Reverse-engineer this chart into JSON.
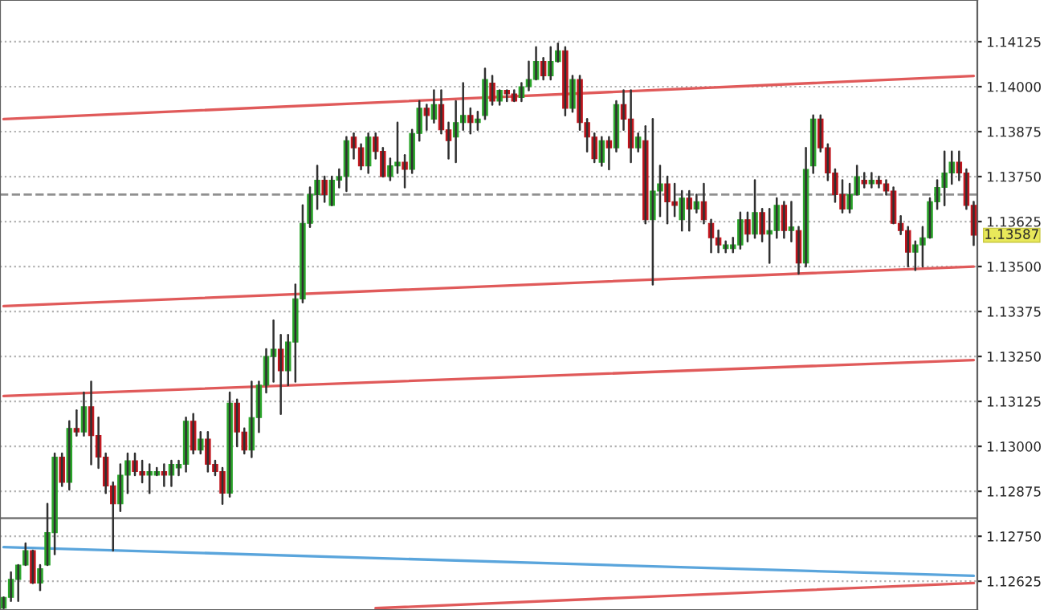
{
  "chart_data": {
    "type": "candlestick",
    "categories": [
      null,
      null,
      null,
      null,
      null,
      null,
      null,
      null,
      null,
      null,
      null,
      null,
      null,
      null,
      null,
      null,
      null,
      null,
      null,
      null,
      null,
      null,
      null,
      null,
      null,
      null,
      null,
      null,
      null,
      null,
      null,
      null,
      null,
      null,
      null,
      null,
      null,
      null,
      null,
      null,
      null,
      null,
      null,
      null,
      null,
      null,
      null,
      null,
      null,
      null,
      null,
      null,
      null,
      null,
      null,
      null,
      null,
      null,
      null,
      null,
      null,
      null,
      null,
      null,
      null,
      null,
      null,
      null,
      null,
      null,
      null,
      null,
      null,
      null,
      null,
      null,
      null,
      null,
      null,
      null,
      null,
      null,
      null,
      null,
      null,
      null,
      null,
      null,
      null,
      null,
      null,
      null,
      null,
      null,
      null,
      null,
      null,
      null,
      null,
      null,
      null,
      null,
      null,
      null,
      null,
      null,
      null,
      null,
      null,
      null,
      null,
      null,
      null,
      null,
      null,
      null,
      null,
      null,
      null,
      null,
      null,
      null,
      null,
      null,
      null,
      null,
      null,
      null,
      null,
      null,
      null,
      null,
      null,
      null
    ],
    "ohlc": [
      [
        1.1255,
        1.1258,
        1.1255,
        1.1258
      ],
      [
        1.1258,
        1.1265,
        1.1257,
        1.1263
      ],
      [
        1.1263,
        1.1267,
        1.1257,
        1.1267
      ],
      [
        1.1267,
        1.1273,
        1.1267,
        1.1271
      ],
      [
        1.1271,
        1.1271,
        1.1262,
        1.1262
      ],
      [
        1.1262,
        1.1267,
        1.126,
        1.1266
      ],
      [
        1.1267,
        1.1284,
        1.1267,
        1.1276
      ],
      [
        1.1276,
        1.1298,
        1.127,
        1.1297
      ],
      [
        1.1297,
        1.1298,
        1.1289,
        1.129
      ],
      [
        1.129,
        1.1307,
        1.1288,
        1.1305
      ],
      [
        1.1305,
        1.131,
        1.1303,
        1.1304
      ],
      [
        1.1304,
        1.1315,
        1.1303,
        1.1311
      ],
      [
        1.1311,
        1.1318,
        1.1295,
        1.1303
      ],
      [
        1.1303,
        1.1308,
        1.1294,
        1.1297
      ],
      [
        1.1297,
        1.1298,
        1.1287,
        1.1289
      ],
      [
        1.1289,
        1.129,
        1.1271,
        1.1284
      ],
      [
        1.1284,
        1.1295,
        1.1282,
        1.1292
      ],
      [
        1.1292,
        1.1298,
        1.1287,
        1.1296
      ],
      [
        1.1296,
        1.1298,
        1.1292,
        1.1293
      ],
      [
        1.1293,
        1.1296,
        1.129,
        1.1292
      ],
      [
        1.1292,
        1.1295,
        1.1287,
        1.1293
      ],
      [
        1.1292,
        1.1294,
        1.1292,
        1.1293
      ],
      [
        1.1293,
        1.1295,
        1.1289,
        1.1292
      ],
      [
        1.1292,
        1.1296,
        1.1289,
        1.1295
      ],
      [
        1.1294,
        1.1296,
        1.1292,
        1.1295
      ],
      [
        1.1295,
        1.1308,
        1.1293,
        1.1307
      ],
      [
        1.1307,
        1.1309,
        1.1298,
        1.1299
      ],
      [
        1.1299,
        1.1304,
        1.1298,
        1.1302
      ],
      [
        1.1302,
        1.1304,
        1.1293,
        1.1295
      ],
      [
        1.1295,
        1.1296,
        1.1292,
        1.1293
      ],
      [
        1.1293,
        1.1294,
        1.1284,
        1.1287
      ],
      [
        1.1287,
        1.1315,
        1.1286,
        1.1312
      ],
      [
        1.1312,
        1.1313,
        1.13,
        1.1304
      ],
      [
        1.1304,
        1.1305,
        1.1298,
        1.1299
      ],
      [
        1.1299,
        1.1318,
        1.1297,
        1.1308
      ],
      [
        1.1308,
        1.1318,
        1.1304,
        1.1317
      ],
      [
        1.1317,
        1.1327,
        1.1315,
        1.1325
      ],
      [
        1.1325,
        1.1335,
        1.1318,
        1.1327
      ],
      [
        1.1327,
        1.1331,
        1.1309,
        1.1321
      ],
      [
        1.1321,
        1.1331,
        1.1317,
        1.1329
      ],
      [
        1.1329,
        1.1345,
        1.1318,
        1.1341
      ],
      [
        1.1341,
        1.1367,
        1.134,
        1.1362
      ],
      [
        1.1362,
        1.1372,
        1.1361,
        1.137
      ],
      [
        1.137,
        1.1378,
        1.1366,
        1.1374
      ],
      [
        1.1374,
        1.1375,
        1.1368,
        1.137
      ],
      [
        1.1367,
        1.1375,
        1.1367,
        1.1374
      ],
      [
        1.1374,
        1.1377,
        1.1372,
        1.1375
      ],
      [
        1.1375,
        1.1386,
        1.1371,
        1.1385
      ],
      [
        1.1386,
        1.1387,
        1.138,
        1.1383
      ],
      [
        1.1383,
        1.1384,
        1.1377,
        1.1378
      ],
      [
        1.1378,
        1.1387,
        1.1376,
        1.1386
      ],
      [
        1.1386,
        1.1387,
        1.138,
        1.1382
      ],
      [
        1.1382,
        1.1383,
        1.1375,
        1.1375
      ],
      [
        1.1375,
        1.138,
        1.1374,
        1.1378
      ],
      [
        1.1378,
        1.139,
        1.1376,
        1.1379
      ],
      [
        1.1379,
        1.1381,
        1.1372,
        1.1377
      ],
      [
        1.1377,
        1.1388,
        1.1376,
        1.1387
      ],
      [
        1.1387,
        1.1396,
        1.1385,
        1.1394
      ],
      [
        1.1394,
        1.1395,
        1.1388,
        1.1392
      ],
      [
        1.1391,
        1.1399,
        1.139,
        1.1395
      ],
      [
        1.1395,
        1.1399,
        1.1387,
        1.1388
      ],
      [
        1.1388,
        1.139,
        1.138,
        1.1385
      ],
      [
        1.1386,
        1.1396,
        1.1379,
        1.139
      ],
      [
        1.139,
        1.1401,
        1.1388,
        1.1392
      ],
      [
        1.1392,
        1.1394,
        1.1387,
        1.139
      ],
      [
        1.139,
        1.1393,
        1.1388,
        1.1391
      ],
      [
        1.1392,
        1.1405,
        1.1391,
        1.1402
      ],
      [
        1.1401,
        1.1403,
        1.1395,
        1.1396
      ],
      [
        1.1396,
        1.1399,
        1.1395,
        1.1399
      ],
      [
        1.1399,
        1.1399,
        1.1396,
        1.1398
      ],
      [
        1.1398,
        1.1399,
        1.1396,
        1.1396
      ],
      [
        1.1397,
        1.1401,
        1.1396,
        1.14
      ],
      [
        1.14,
        1.1407,
        1.1399,
        1.1402
      ],
      [
        1.1402,
        1.1411,
        1.1402,
        1.1407
      ],
      [
        1.1407,
        1.1408,
        1.1402,
        1.1403
      ],
      [
        1.1403,
        1.1411,
        1.1402,
        1.1407
      ],
      [
        1.1407,
        1.1412,
        1.1407,
        1.141
      ],
      [
        1.141,
        1.1411,
        1.1392,
        1.1394
      ],
      [
        1.1394,
        1.1403,
        1.1393,
        1.1402
      ],
      [
        1.1402,
        1.1403,
        1.1388,
        1.139
      ],
      [
        1.139,
        1.1391,
        1.1382,
        1.1386
      ],
      [
        1.1386,
        1.1387,
        1.1379,
        1.138
      ],
      [
        1.1379,
        1.1386,
        1.1378,
        1.1385
      ],
      [
        1.1385,
        1.1386,
        1.1377,
        1.1383
      ],
      [
        1.1383,
        1.1396,
        1.1382,
        1.1395
      ],
      [
        1.1395,
        1.1399,
        1.1388,
        1.1391
      ],
      [
        1.1391,
        1.1399,
        1.1379,
        1.1383
      ],
      [
        1.1383,
        1.1387,
        1.1382,
        1.1386
      ],
      [
        1.1385,
        1.1389,
        1.1362,
        1.1363
      ],
      [
        1.1363,
        1.1391,
        1.1345,
        1.1371
      ],
      [
        1.1371,
        1.1378,
        1.1364,
        1.1373
      ],
      [
        1.1373,
        1.1375,
        1.1362,
        1.1368
      ],
      [
        1.1368,
        1.1373,
        1.1364,
        1.1367
      ],
      [
        1.1363,
        1.1371,
        1.136,
        1.1369
      ],
      [
        1.1369,
        1.1371,
        1.136,
        1.1366
      ],
      [
        1.1366,
        1.137,
        1.1365,
        1.1368
      ],
      [
        1.1368,
        1.1373,
        1.1362,
        1.1363
      ],
      [
        1.1362,
        1.1363,
        1.1354,
        1.1358
      ],
      [
        1.1358,
        1.136,
        1.1354,
        1.1356
      ],
      [
        1.1355,
        1.1357,
        1.1354,
        1.1356
      ],
      [
        1.1355,
        1.1358,
        1.1354,
        1.1356
      ],
      [
        1.1356,
        1.1365,
        1.1355,
        1.1363
      ],
      [
        1.1363,
        1.1365,
        1.1357,
        1.1359
      ],
      [
        1.1359,
        1.1374,
        1.1358,
        1.1365
      ],
      [
        1.1365,
        1.1366,
        1.1357,
        1.1359
      ],
      [
        1.1359,
        1.1366,
        1.1351,
        1.136
      ],
      [
        1.136,
        1.1369,
        1.1358,
        1.1367
      ],
      [
        1.1367,
        1.1368,
        1.1358,
        1.136
      ],
      [
        1.136,
        1.1368,
        1.1357,
        1.1361
      ],
      [
        1.136,
        1.1361,
        1.1348,
        1.1351
      ],
      [
        1.1351,
        1.1383,
        1.135,
        1.1377
      ],
      [
        1.1378,
        1.1392,
        1.1376,
        1.1391
      ],
      [
        1.1391,
        1.1392,
        1.1382,
        1.1383
      ],
      [
        1.1383,
        1.1384,
        1.1374,
        1.1376
      ],
      [
        1.1376,
        1.1377,
        1.1368,
        1.137
      ],
      [
        1.137,
        1.1374,
        1.1365,
        1.1366
      ],
      [
        1.1366,
        1.1373,
        1.1365,
        1.137
      ],
      [
        1.137,
        1.1378,
        1.137,
        1.1375
      ],
      [
        1.1374,
        1.1376,
        1.1372,
        1.1373
      ],
      [
        1.1373,
        1.1376,
        1.1372,
        1.1374
      ],
      [
        1.1374,
        1.1375,
        1.1372,
        1.1373
      ],
      [
        1.1373,
        1.1374,
        1.137,
        1.1371
      ],
      [
        1.1371,
        1.1372,
        1.1362,
        1.1362
      ],
      [
        1.1362,
        1.1364,
        1.1359,
        1.136
      ],
      [
        1.136,
        1.1361,
        1.135,
        1.1354
      ],
      [
        1.1354,
        1.1357,
        1.1349,
        1.1356
      ],
      [
        1.1356,
        1.1361,
        1.135,
        1.1358
      ],
      [
        1.1358,
        1.1369,
        1.1358,
        1.1368
      ],
      [
        1.1368,
        1.1374,
        1.1366,
        1.1372
      ],
      [
        1.1372,
        1.1382,
        1.1367,
        1.1376
      ],
      [
        1.1376,
        1.1382,
        1.1373,
        1.1379
      ],
      [
        1.1379,
        1.1382,
        1.1374,
        1.1376
      ],
      [
        1.1376,
        1.1377,
        1.1366,
        1.1367
      ],
      [
        1.1367,
        1.1368,
        1.1356,
        1.13587
      ]
    ],
    "series": [
      {
        "type": "line",
        "color": "#e05a5a",
        "values": [
          1.1391,
          null,
          null,
          null,
          null,
          null,
          null,
          null,
          null,
          null,
          null,
          null,
          null,
          null,
          null,
          null,
          null,
          null,
          null,
          null,
          null,
          null,
          null,
          null,
          null,
          null,
          null,
          null,
          null,
          null,
          null,
          null,
          null,
          null,
          null,
          null,
          null,
          null,
          null,
          null,
          null,
          null,
          null,
          null,
          null,
          null,
          null,
          null,
          null,
          null,
          null,
          null,
          null,
          null,
          null,
          null,
          null,
          null,
          null,
          null,
          null,
          null,
          null,
          null,
          null,
          null,
          null,
          null,
          null,
          null,
          null,
          null,
          null,
          null,
          null,
          null,
          null,
          null,
          null,
          null,
          null,
          null,
          null,
          null,
          null,
          null,
          null,
          null,
          null,
          null,
          null,
          null,
          null,
          null,
          null,
          null,
          null,
          null,
          null,
          null,
          null,
          null,
          null,
          null,
          null,
          null,
          null,
          null,
          null,
          null,
          null,
          null,
          null,
          null,
          null,
          null,
          null,
          null,
          null,
          null,
          null,
          null,
          null,
          null,
          null,
          null,
          null,
          null,
          null,
          null,
          null,
          null,
          null,
          1.1403
        ]
      },
      {
        "type": "line",
        "color": "#e05a5a",
        "values": [
          1.1339,
          null,
          null,
          null,
          null,
          null,
          null,
          null,
          null,
          null,
          null,
          null,
          null,
          null,
          null,
          null,
          null,
          null,
          null,
          null,
          null,
          null,
          null,
          null,
          null,
          null,
          null,
          null,
          null,
          null,
          null,
          null,
          null,
          null,
          null,
          null,
          null,
          null,
          null,
          null,
          null,
          null,
          null,
          null,
          null,
          null,
          null,
          null,
          null,
          null,
          null,
          null,
          null,
          null,
          null,
          null,
          null,
          null,
          null,
          null,
          null,
          null,
          null,
          null,
          null,
          null,
          null,
          null,
          null,
          null,
          null,
          null,
          null,
          null,
          null,
          null,
          null,
          null,
          null,
          null,
          null,
          null,
          null,
          null,
          null,
          null,
          null,
          null,
          null,
          null,
          null,
          null,
          null,
          null,
          null,
          null,
          null,
          null,
          null,
          null,
          null,
          null,
          null,
          null,
          null,
          null,
          null,
          null,
          null,
          null,
          null,
          null,
          null,
          null,
          null,
          null,
          null,
          null,
          null,
          null,
          null,
          null,
          null,
          null,
          null,
          null,
          null,
          null,
          null,
          null,
          null,
          null,
          null,
          1.135
        ]
      },
      {
        "type": "line",
        "color": "#e05a5a",
        "values": [
          1.1314,
          null,
          null,
          null,
          null,
          null,
          null,
          null,
          null,
          null,
          null,
          null,
          null,
          null,
          null,
          null,
          null,
          null,
          null,
          null,
          null,
          null,
          null,
          null,
          null,
          null,
          null,
          null,
          null,
          null,
          null,
          null,
          null,
          null,
          null,
          null,
          null,
          null,
          null,
          null,
          null,
          null,
          null,
          null,
          null,
          null,
          null,
          null,
          null,
          null,
          null,
          null,
          null,
          null,
          null,
          null,
          null,
          null,
          null,
          null,
          null,
          null,
          null,
          null,
          null,
          null,
          null,
          null,
          null,
          null,
          null,
          null,
          null,
          null,
          null,
          null,
          null,
          null,
          null,
          null,
          null,
          null,
          null,
          null,
          null,
          null,
          null,
          null,
          null,
          null,
          null,
          null,
          null,
          null,
          null,
          null,
          null,
          null,
          null,
          null,
          null,
          null,
          null,
          null,
          null,
          null,
          null,
          null,
          null,
          null,
          null,
          null,
          null,
          null,
          null,
          null,
          null,
          null,
          null,
          null,
          null,
          null,
          null,
          null,
          null,
          null,
          null,
          null,
          null,
          null,
          null,
          null,
          null,
          1.1324
        ]
      },
      {
        "type": "line",
        "color": "#e05a5a",
        "values": [
          null,
          null,
          null,
          null,
          null,
          null,
          null,
          null,
          null,
          null,
          null,
          null,
          null,
          null,
          null,
          null,
          null,
          null,
          null,
          null,
          null,
          null,
          null,
          null,
          null,
          null,
          null,
          null,
          null,
          null,
          null,
          null,
          null,
          null,
          null,
          null,
          null,
          null,
          null,
          null,
          null,
          null,
          null,
          null,
          null,
          null,
          null,
          null,
          null,
          null,
          null,
          1.1255,
          null,
          null,
          null,
          null,
          null,
          null,
          null,
          null,
          null,
          null,
          null,
          null,
          null,
          null,
          null,
          null,
          null,
          null,
          null,
          null,
          null,
          null,
          null,
          null,
          null,
          null,
          null,
          null,
          null,
          null,
          null,
          null,
          null,
          null,
          null,
          null,
          null,
          null,
          null,
          null,
          null,
          null,
          null,
          null,
          null,
          null,
          null,
          null,
          null,
          null,
          null,
          null,
          null,
          null,
          null,
          null,
          null,
          null,
          null,
          null,
          null,
          null,
          null,
          null,
          null,
          null,
          null,
          null,
          null,
          null,
          null,
          null,
          null,
          null,
          null,
          null,
          null,
          null,
          null,
          null,
          null,
          1.1262
        ]
      },
      {
        "type": "line",
        "color": "#5aa5dc",
        "values": [
          1.1272,
          null,
          null,
          null,
          null,
          null,
          null,
          null,
          null,
          null,
          null,
          null,
          null,
          null,
          null,
          null,
          null,
          null,
          null,
          null,
          null,
          null,
          null,
          null,
          null,
          null,
          null,
          null,
          null,
          null,
          null,
          null,
          null,
          null,
          null,
          null,
          null,
          null,
          null,
          null,
          null,
          null,
          null,
          null,
          null,
          null,
          null,
          null,
          null,
          null,
          null,
          null,
          null,
          null,
          null,
          null,
          null,
          null,
          null,
          null,
          null,
          null,
          null,
          null,
          null,
          null,
          null,
          null,
          null,
          null,
          null,
          null,
          null,
          null,
          null,
          null,
          null,
          null,
          null,
          null,
          null,
          null,
          null,
          null,
          null,
          null,
          null,
          null,
          null,
          null,
          null,
          null,
          null,
          null,
          null,
          null,
          null,
          null,
          null,
          null,
          null,
          null,
          null,
          null,
          null,
          null,
          null,
          null,
          null,
          null,
          null,
          null,
          null,
          null,
          null,
          null,
          null,
          null,
          null,
          null,
          null,
          null,
          null,
          null,
          null,
          null,
          null,
          null,
          null,
          null,
          null,
          null,
          null,
          1.1264
        ]
      }
    ],
    "ref_lines": [
      {
        "axis": "y",
        "value": 1.128,
        "color": "#808080"
      },
      {
        "axis": "y",
        "value": 1.137,
        "color": "#909090",
        "line_style": "dashed"
      }
    ],
    "annotations": [
      "1.13587"
    ],
    "ylim": [
      1.12545,
      1.14241
    ],
    "yticks": [
      {
        "value": 1.12625,
        "label": "1.12625"
      },
      {
        "value": 1.1275,
        "label": "1.12750"
      },
      {
        "value": 1.12875,
        "label": "1.12875"
      },
      {
        "value": 1.13,
        "label": "1.13000"
      },
      {
        "value": 1.13125,
        "label": "1.13125"
      },
      {
        "value": 1.1325,
        "label": "1.13250"
      },
      {
        "value": 1.13375,
        "label": "1.13375"
      },
      {
        "value": 1.135,
        "label": "1.13500"
      },
      {
        "value": 1.13625,
        "label": "1.13625"
      },
      {
        "value": 1.1375,
        "label": "1.13750"
      },
      {
        "value": 1.13875,
        "label": "1.13875"
      },
      {
        "value": 1.14,
        "label": "1.14000"
      },
      {
        "value": 1.14125,
        "label": "1.14125"
      }
    ],
    "grid": "y",
    "tick_labels": "y"
  }
}
